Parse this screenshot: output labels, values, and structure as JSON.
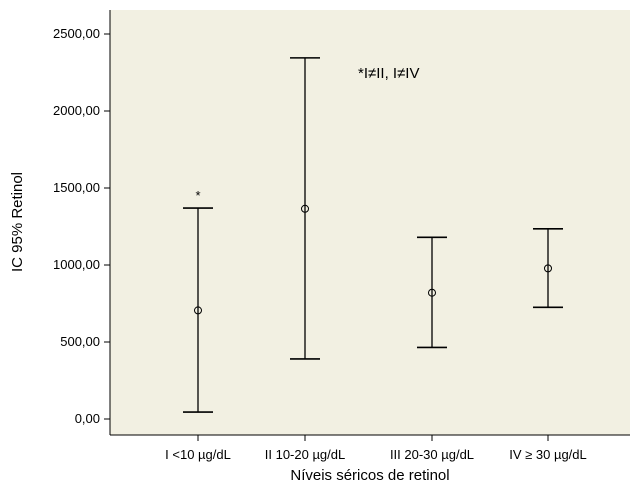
{
  "chart_data": {
    "type": "errorbar",
    "xlabel": "Níveis séricos de retinol",
    "ylabel": "IC 95% Retinol",
    "ylim": [
      -100,
      2650
    ],
    "yticks": [
      0,
      500,
      1000,
      1500,
      2000,
      2500
    ],
    "ytick_labels": [
      "0,00",
      "500,00",
      "1000,00",
      "1500,00",
      "2000,00",
      "2500,00"
    ],
    "categories": [
      "I <10 µg/dL",
      "II 10-20 µg/dL",
      "III 20-30 µg/dL",
      "IV ≥ 30 µg/dL"
    ],
    "series": [
      {
        "mean": [
          705,
          1365,
          820,
          978
        ],
        "lower": [
          45,
          390,
          465,
          725
        ],
        "upper": [
          1370,
          2345,
          1180,
          1235
        ]
      }
    ],
    "markers": [
      "*",
      "",
      "",
      ""
    ],
    "annotation": "*I≠II, I≠IV",
    "grid": false,
    "colors": {
      "background": "#f2f0e2",
      "axis": "#000000",
      "bars": "#000000"
    }
  }
}
